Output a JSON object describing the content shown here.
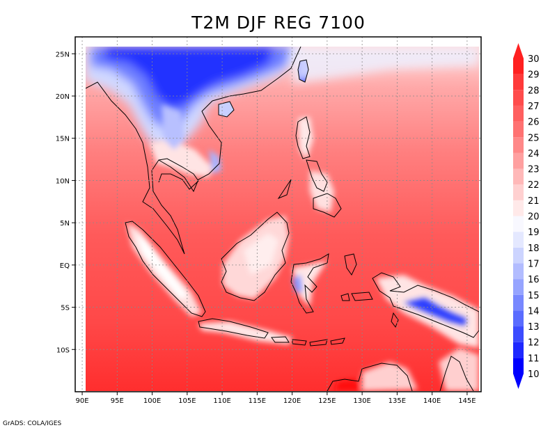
{
  "title": "T2M DJF REG 7100",
  "footer": "GrADS: COLA/IGES",
  "map": {
    "lon_range": [
      89,
      147
    ],
    "lat_range": [
      -15,
      27
    ],
    "lon_ticks": [
      90,
      95,
      100,
      105,
      110,
      115,
      120,
      125,
      130,
      135,
      140,
      145
    ],
    "lon_labels": [
      "90E",
      "95E",
      "100E",
      "105E",
      "110E",
      "115E",
      "120E",
      "125E",
      "130E",
      "135E",
      "140E",
      "145E"
    ],
    "lat_ticks": [
      25,
      20,
      15,
      10,
      5,
      0,
      -5,
      -10
    ],
    "lat_labels": [
      "25N",
      "20N",
      "15N",
      "10N",
      "5N",
      "EQ",
      "5S",
      "10S"
    ]
  },
  "colorbar": {
    "levels": [
      10,
      11,
      12,
      13,
      14,
      15,
      16,
      17,
      18,
      19,
      20,
      21,
      22,
      23,
      24,
      25,
      26,
      27,
      28,
      29,
      30
    ],
    "colors": [
      "#0000ff",
      "#1e28ff",
      "#3c4cff",
      "#5a6cff",
      "#7888ff",
      "#96a4ff",
      "#b2bcff",
      "#ccd4ff",
      "#e4e8ff",
      "#f8f8ff",
      "#ffe9e9",
      "#ffd0d0",
      "#ffb8b8",
      "#ffa0a0",
      "#ff8888",
      "#ff7272",
      "#ff5f5f",
      "#ff4c4c",
      "#ff3a3a",
      "#ff2020"
    ]
  }
}
